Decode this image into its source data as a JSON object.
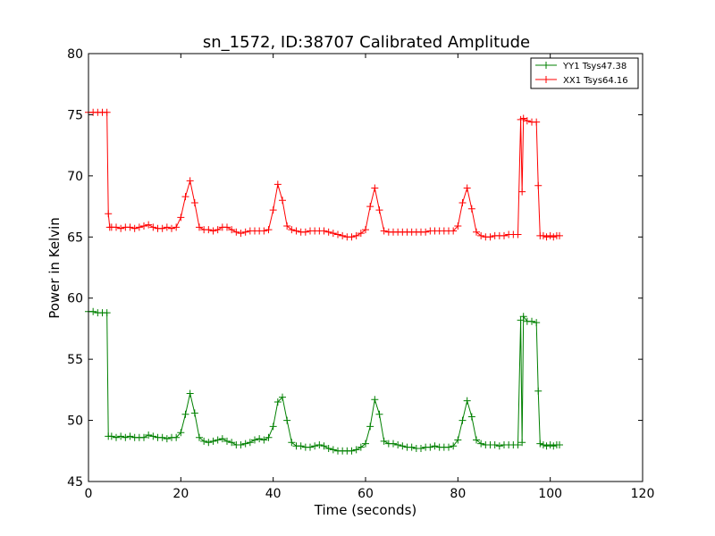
{
  "chart_data": {
    "type": "line",
    "title": "sn_1572, ID:38707 Calibrated Amplitude",
    "xlabel": "Time (seconds)",
    "ylabel": "Power in Kelvin",
    "xlim": [
      0,
      120
    ],
    "ylim": [
      45,
      80
    ],
    "x_ticks": [
      "0",
      "20",
      "40",
      "60",
      "80",
      "100",
      "120"
    ],
    "y_ticks": [
      "45",
      "50",
      "55",
      "60",
      "65",
      "70",
      "75",
      "80"
    ],
    "grid": false,
    "legend_position": "top-right",
    "marker": "+",
    "series": [
      {
        "name": "YY1 Tsys47.38",
        "color": "#008000",
        "points": [
          [
            0,
            58.9
          ],
          [
            1,
            58.9
          ],
          [
            2,
            58.8
          ],
          [
            3,
            58.8
          ],
          [
            4.0,
            58.8
          ],
          [
            4.3,
            48.7
          ],
          [
            5,
            48.7
          ],
          [
            6,
            48.6
          ],
          [
            7,
            48.7
          ],
          [
            8,
            48.6
          ],
          [
            9,
            48.7
          ],
          [
            10,
            48.6
          ],
          [
            11,
            48.6
          ],
          [
            12,
            48.6
          ],
          [
            13,
            48.8
          ],
          [
            14,
            48.7
          ],
          [
            15,
            48.6
          ],
          [
            16,
            48.6
          ],
          [
            17,
            48.5
          ],
          [
            18,
            48.6
          ],
          [
            19,
            48.6
          ],
          [
            20,
            49.0
          ],
          [
            21,
            50.5
          ],
          [
            22,
            52.2
          ],
          [
            23,
            50.6
          ],
          [
            24,
            48.6
          ],
          [
            25,
            48.3
          ],
          [
            26,
            48.2
          ],
          [
            27,
            48.3
          ],
          [
            28,
            48.4
          ],
          [
            29,
            48.5
          ],
          [
            30,
            48.3
          ],
          [
            31,
            48.2
          ],
          [
            32,
            48.0
          ],
          [
            33,
            48.0
          ],
          [
            34,
            48.1
          ],
          [
            35,
            48.2
          ],
          [
            36,
            48.4
          ],
          [
            37,
            48.5
          ],
          [
            38,
            48.4
          ],
          [
            39,
            48.6
          ],
          [
            40,
            49.5
          ],
          [
            41,
            51.5
          ],
          [
            42,
            51.9
          ],
          [
            43,
            50.0
          ],
          [
            44,
            48.2
          ],
          [
            45,
            47.9
          ],
          [
            46,
            47.9
          ],
          [
            47,
            47.8
          ],
          [
            48,
            47.8
          ],
          [
            49,
            47.9
          ],
          [
            50,
            48.0
          ],
          [
            51,
            47.9
          ],
          [
            52,
            47.7
          ],
          [
            53,
            47.6
          ],
          [
            54,
            47.5
          ],
          [
            55,
            47.5
          ],
          [
            56,
            47.5
          ],
          [
            57,
            47.5
          ],
          [
            58,
            47.6
          ],
          [
            59,
            47.8
          ],
          [
            60,
            48.1
          ],
          [
            61,
            49.5
          ],
          [
            62,
            51.7
          ],
          [
            63,
            50.5
          ],
          [
            64,
            48.3
          ],
          [
            65,
            48.1
          ],
          [
            66,
            48.1
          ],
          [
            67,
            48.0
          ],
          [
            68,
            47.9
          ],
          [
            69,
            47.8
          ],
          [
            70,
            47.8
          ],
          [
            71,
            47.7
          ],
          [
            72,
            47.7
          ],
          [
            73,
            47.8
          ],
          [
            74,
            47.8
          ],
          [
            75,
            47.9
          ],
          [
            76,
            47.8
          ],
          [
            77,
            47.8
          ],
          [
            78,
            47.8
          ],
          [
            79,
            47.9
          ],
          [
            80,
            48.4
          ],
          [
            81,
            50.0
          ],
          [
            82,
            51.6
          ],
          [
            83,
            50.3
          ],
          [
            84,
            48.4
          ],
          [
            85,
            48.1
          ],
          [
            86,
            48.0
          ],
          [
            87,
            48.0
          ],
          [
            88,
            48.0
          ],
          [
            89,
            47.9
          ],
          [
            90,
            48.0
          ],
          [
            91,
            48.0
          ],
          [
            92,
            48.0
          ],
          [
            93,
            48.0
          ],
          [
            93.6,
            58.2
          ],
          [
            93.9,
            48.2
          ],
          [
            94.2,
            58.5
          ],
          [
            95,
            58.1
          ],
          [
            96,
            58.1
          ],
          [
            97,
            58.0
          ],
          [
            97.4,
            52.4
          ],
          [
            97.8,
            48.1
          ],
          [
            98.5,
            48.0
          ],
          [
            99.2,
            47.9
          ],
          [
            100,
            48.0
          ],
          [
            100.7,
            47.9
          ],
          [
            101.4,
            48.0
          ],
          [
            102,
            48.0
          ]
        ]
      },
      {
        "name": "XX1 Tsys64.16",
        "color": "#ff0000",
        "points": [
          [
            0,
            75.2
          ],
          [
            1,
            75.2
          ],
          [
            2,
            75.2
          ],
          [
            3,
            75.2
          ],
          [
            4.0,
            75.2
          ],
          [
            4.3,
            66.9
          ],
          [
            4.6,
            65.8
          ],
          [
            5,
            65.8
          ],
          [
            6,
            65.8
          ],
          [
            7,
            65.7
          ],
          [
            8,
            65.8
          ],
          [
            9,
            65.8
          ],
          [
            10,
            65.7
          ],
          [
            11,
            65.8
          ],
          [
            12,
            65.9
          ],
          [
            13,
            66.0
          ],
          [
            14,
            65.8
          ],
          [
            15,
            65.7
          ],
          [
            16,
            65.7
          ],
          [
            17,
            65.8
          ],
          [
            18,
            65.7
          ],
          [
            19,
            65.8
          ],
          [
            20,
            66.6
          ],
          [
            21,
            68.3
          ],
          [
            22,
            69.6
          ],
          [
            23,
            67.8
          ],
          [
            24,
            65.8
          ],
          [
            25,
            65.6
          ],
          [
            26,
            65.6
          ],
          [
            27,
            65.5
          ],
          [
            28,
            65.6
          ],
          [
            29,
            65.8
          ],
          [
            30,
            65.8
          ],
          [
            31,
            65.6
          ],
          [
            32,
            65.4
          ],
          [
            33,
            65.3
          ],
          [
            34,
            65.4
          ],
          [
            35,
            65.5
          ],
          [
            36,
            65.5
          ],
          [
            37,
            65.5
          ],
          [
            38,
            65.5
          ],
          [
            39,
            65.6
          ],
          [
            40,
            67.2
          ],
          [
            41,
            69.3
          ],
          [
            42,
            68.0
          ],
          [
            43,
            65.9
          ],
          [
            44,
            65.6
          ],
          [
            45,
            65.5
          ],
          [
            46,
            65.4
          ],
          [
            47,
            65.4
          ],
          [
            48,
            65.5
          ],
          [
            49,
            65.5
          ],
          [
            50,
            65.5
          ],
          [
            51,
            65.5
          ],
          [
            52,
            65.4
          ],
          [
            53,
            65.3
          ],
          [
            54,
            65.2
          ],
          [
            55,
            65.1
          ],
          [
            56,
            65.0
          ],
          [
            57,
            65.0
          ],
          [
            58,
            65.1
          ],
          [
            59,
            65.3
          ],
          [
            60,
            65.6
          ],
          [
            61,
            67.5
          ],
          [
            62,
            69.0
          ],
          [
            63,
            67.2
          ],
          [
            64,
            65.5
          ],
          [
            65,
            65.4
          ],
          [
            66,
            65.4
          ],
          [
            67,
            65.4
          ],
          [
            68,
            65.4
          ],
          [
            69,
            65.4
          ],
          [
            70,
            65.4
          ],
          [
            71,
            65.4
          ],
          [
            72,
            65.4
          ],
          [
            73,
            65.4
          ],
          [
            74,
            65.5
          ],
          [
            75,
            65.5
          ],
          [
            76,
            65.5
          ],
          [
            77,
            65.5
          ],
          [
            78,
            65.5
          ],
          [
            79,
            65.5
          ],
          [
            80,
            65.9
          ],
          [
            81,
            67.8
          ],
          [
            82,
            69.0
          ],
          [
            83,
            67.3
          ],
          [
            84,
            65.4
          ],
          [
            85,
            65.1
          ],
          [
            86,
            65.0
          ],
          [
            87,
            65.0
          ],
          [
            88,
            65.1
          ],
          [
            89,
            65.1
          ],
          [
            90,
            65.1
          ],
          [
            91,
            65.2
          ],
          [
            92,
            65.2
          ],
          [
            93,
            65.2
          ],
          [
            93.6,
            74.6
          ],
          [
            93.9,
            68.7
          ],
          [
            94.2,
            74.7
          ],
          [
            95,
            74.5
          ],
          [
            96,
            74.4
          ],
          [
            97,
            74.4
          ],
          [
            97.4,
            69.2
          ],
          [
            97.8,
            65.1
          ],
          [
            98.5,
            65.1
          ],
          [
            99.2,
            65.0
          ],
          [
            100,
            65.1
          ],
          [
            100.7,
            65.0
          ],
          [
            101.4,
            65.1
          ],
          [
            102,
            65.1
          ]
        ]
      }
    ]
  }
}
